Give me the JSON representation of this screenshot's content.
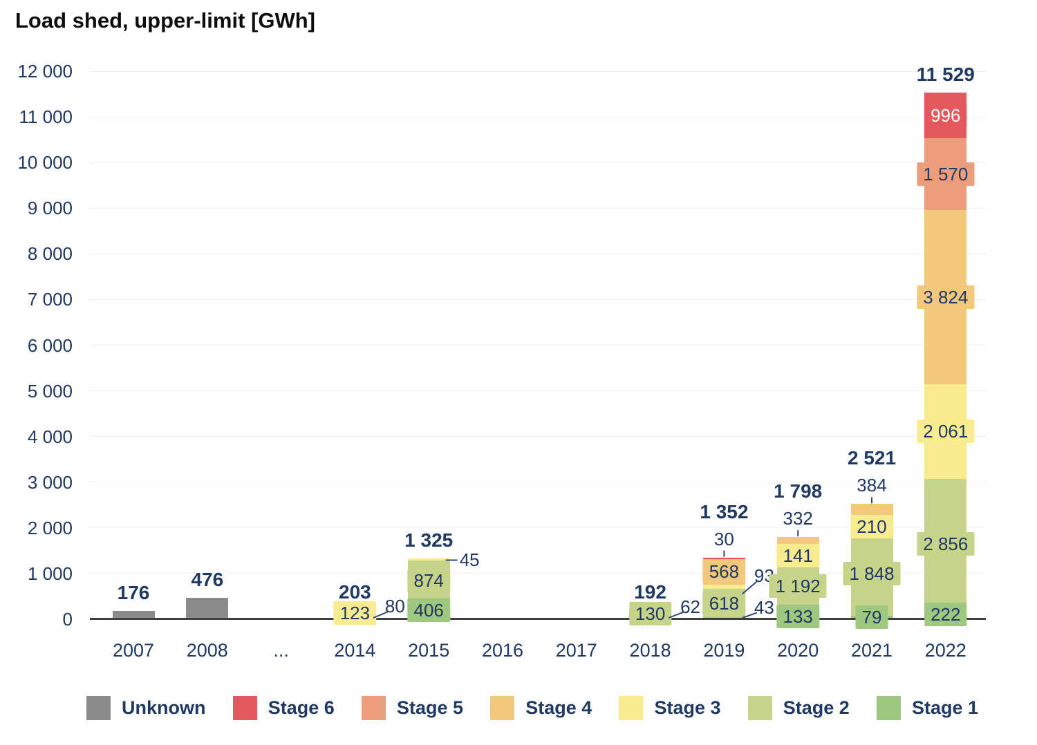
{
  "chart_data": {
    "type": "bar",
    "stacked": true,
    "title": "Load shed, upper-limit [GWh]",
    "xlabel": "",
    "ylabel": "",
    "ylim": [
      0,
      12000
    ],
    "ytick_interval": 1000,
    "ytick_labels": [
      "0",
      "1 000",
      "2 000",
      "3 000",
      "4 000",
      "5 000",
      "6 000",
      "7 000",
      "8 000",
      "9 000",
      "10 000",
      "11 000",
      "12 000"
    ],
    "grid": true,
    "categories": [
      "2007",
      "2008",
      "...",
      "2014",
      "2015",
      "2016",
      "2017",
      "2018",
      "2019",
      "2020",
      "2021",
      "2022"
    ],
    "series": [
      {
        "name": "Stage 1",
        "color": "#9ec87f",
        "values": [
          0,
          0,
          0,
          0,
          406,
          0,
          0,
          62,
          43,
          133,
          79,
          222
        ]
      },
      {
        "name": "Stage 2",
        "color": "#c6d489",
        "values": [
          0,
          0,
          0,
          80,
          874,
          0,
          0,
          130,
          618,
          1192,
          1848,
          2856
        ]
      },
      {
        "name": "Stage 3",
        "color": "#f9ec90",
        "values": [
          0,
          0,
          0,
          123,
          45,
          0,
          0,
          0,
          93,
          141,
          210,
          2061
        ]
      },
      {
        "name": "Stage 4",
        "color": "#f3c87d",
        "values": [
          0,
          0,
          0,
          0,
          0,
          0,
          0,
          0,
          568,
          332,
          384,
          3824
        ]
      },
      {
        "name": "Stage 5",
        "color": "#ec9d7c",
        "values": [
          0,
          0,
          0,
          0,
          0,
          0,
          0,
          0,
          0,
          0,
          0,
          1570
        ]
      },
      {
        "name": "Stage 6",
        "color": "#e2585c",
        "values": [
          0,
          0,
          0,
          0,
          0,
          0,
          0,
          0,
          30,
          0,
          0,
          996
        ]
      },
      {
        "name": "Unknown",
        "color": "#8b8b8b",
        "values": [
          176,
          476,
          0,
          0,
          0,
          0,
          0,
          0,
          0,
          0,
          0,
          0
        ]
      }
    ],
    "totals": [
      "176",
      "476",
      "",
      "203",
      "1 325",
      "",
      "",
      "192",
      "1 352",
      "1 798",
      "2 521",
      "11 529"
    ],
    "annotations": [
      {
        "category": "2014",
        "series": "Stage 3",
        "text": "123",
        "type": "badge"
      },
      {
        "category": "2014",
        "series": "Stage 2",
        "text": "80",
        "type": "right"
      },
      {
        "category": "2015",
        "series": "Stage 3",
        "text": "45",
        "type": "right-dash"
      },
      {
        "category": "2015",
        "series": "Stage 2",
        "text": "874",
        "type": "badge"
      },
      {
        "category": "2015",
        "series": "Stage 1",
        "text": "406",
        "type": "badge"
      },
      {
        "category": "2018",
        "series": "Stage 2",
        "text": "130",
        "type": "badge"
      },
      {
        "category": "2018",
        "series": "Stage 1",
        "text": "62",
        "type": "right"
      },
      {
        "category": "2019",
        "series": "Stage 6",
        "text": "30",
        "type": "above"
      },
      {
        "category": "2019",
        "series": "Stage 4",
        "text": "568",
        "type": "badge"
      },
      {
        "category": "2019",
        "series": "Stage 3",
        "text": "93",
        "type": "right"
      },
      {
        "category": "2019",
        "series": "Stage 2",
        "text": "618",
        "type": "badge"
      },
      {
        "category": "2019",
        "series": "Stage 1",
        "text": "43",
        "type": "right"
      },
      {
        "category": "2020",
        "series": "Stage 4",
        "text": "332",
        "type": "above"
      },
      {
        "category": "2020",
        "series": "Stage 3",
        "text": "141",
        "type": "badge"
      },
      {
        "category": "2020",
        "series": "Stage 2",
        "text": "1 192",
        "type": "badge"
      },
      {
        "category": "2020",
        "series": "Stage 1",
        "text": "133",
        "type": "badge"
      },
      {
        "category": "2021",
        "series": "Stage 4",
        "text": "384",
        "type": "above"
      },
      {
        "category": "2021",
        "series": "Stage 3",
        "text": "210",
        "type": "badge"
      },
      {
        "category": "2021",
        "series": "Stage 2",
        "text": "1 848",
        "type": "badge"
      },
      {
        "category": "2021",
        "series": "Stage 1",
        "text": "79",
        "type": "badge"
      },
      {
        "category": "2022",
        "series": "Stage 6",
        "text": "996",
        "type": "badge",
        "text_color": "#ffffff"
      },
      {
        "category": "2022",
        "series": "Stage 5",
        "text": "1 570",
        "type": "badge"
      },
      {
        "category": "2022",
        "series": "Stage 4",
        "text": "3 824",
        "type": "badge"
      },
      {
        "category": "2022",
        "series": "Stage 3",
        "text": "2 061",
        "type": "badge"
      },
      {
        "category": "2022",
        "series": "Stage 2",
        "text": "2 856",
        "type": "badge"
      },
      {
        "category": "2022",
        "series": "Stage 1",
        "text": "222",
        "type": "badge"
      }
    ],
    "legend": {
      "position": "bottom",
      "items": [
        {
          "label": "Unknown",
          "color": "#8b8b8b"
        },
        {
          "label": "Stage 6",
          "color": "#e2585c"
        },
        {
          "label": "Stage 5",
          "color": "#ec9d7c"
        },
        {
          "label": "Stage 4",
          "color": "#f3c87d"
        },
        {
          "label": "Stage 3",
          "color": "#f9ec90"
        },
        {
          "label": "Stage 2",
          "color": "#c6d489"
        },
        {
          "label": "Stage 1",
          "color": "#9ec87f"
        }
      ]
    },
    "colors": {
      "text": "#1f3864",
      "title": "#0d0d0d",
      "grid": "#efefef",
      "axis": "#3f3f3f",
      "leader": "#2d4a77"
    }
  }
}
